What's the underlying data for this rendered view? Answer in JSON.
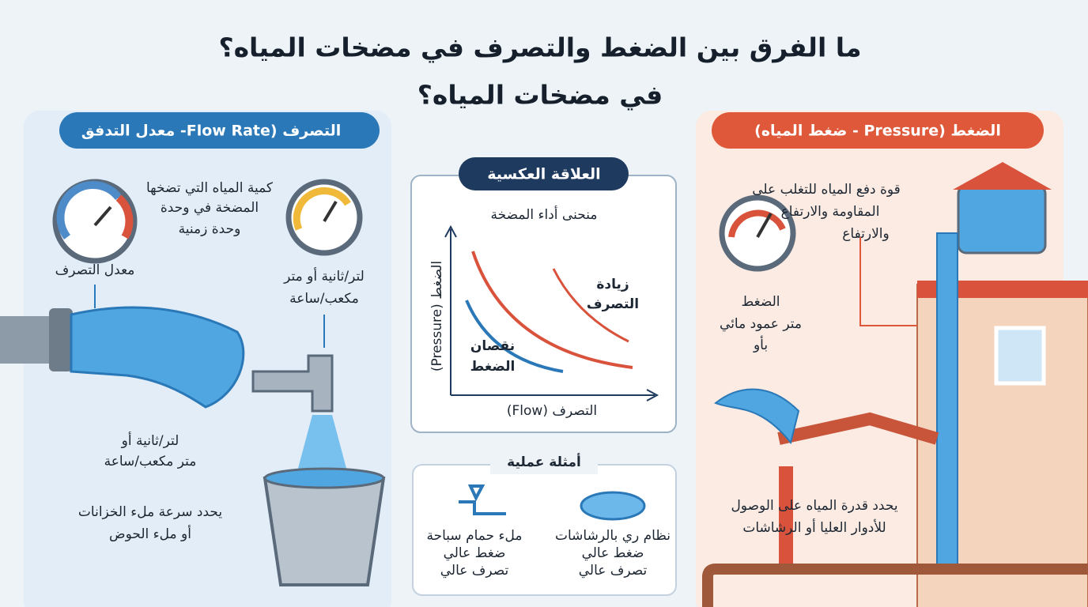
{
  "title": {
    "line1": "ما الفرق بين الضغط والتصرف في مضخات المياه؟",
    "line2": "في مضخات المياه؟"
  },
  "flow_panel": {
    "header": "التصرف (Flow Rate- معدل التدفق",
    "definition": [
      "كمية المياه التي تضخها",
      "المضخة في وحدة",
      "وحدة زمنية"
    ],
    "gauge_label": "معدل التصرف",
    "units_top": [
      "لتر/ثانية أو متر",
      "مكعب/ساعة"
    ],
    "units_bottom": [
      "لتر/ثانية أو",
      "متر مكعب/ساعة"
    ],
    "purpose": [
      "يحدد سرعة ملء الخزانات",
      "أو ملء الحوض"
    ]
  },
  "relationship": {
    "header": "العلاقة العكسية",
    "subtitle": "منحنى أداء المضخة",
    "y_axis": "الضغط (Pressure)",
    "x_axis": "التصرف (Flow)",
    "increase_label": [
      "زيادة",
      "التصرف"
    ],
    "decrease_label": [
      "نقصان",
      "الضغط"
    ]
  },
  "examples": {
    "header": "أمثلة عملية",
    "items": [
      {
        "title": "نظام ري بالرشاشات",
        "line1": "ضغط عالي",
        "line2": "تصرف عالي"
      },
      {
        "title": "ملء حمام سباحة",
        "line1": "ضغط عالي",
        "line2": "تصرف عالي"
      }
    ]
  },
  "pressure_panel": {
    "header": "الضغط (Pressure - ضغط المياه)",
    "definition": [
      "قوة دفع المياه للتغلب على",
      "المقاومة والارتفاع",
      "والارتفاع"
    ],
    "gauge_label": "الضغط",
    "units": [
      "متر عمود مائي",
      "بأو"
    ],
    "purpose": [
      "يحدد قدرة المياه على الوصول",
      "للأدوار العليا أو الرشاشات"
    ]
  }
}
